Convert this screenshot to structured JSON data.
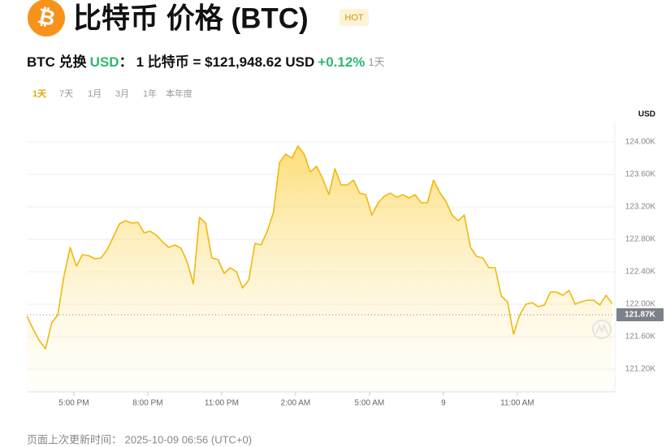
{
  "logo": "₿",
  "title": "比特币 价格 (BTC)",
  "badge": "HOT",
  "converter": {
    "base": "BTC 兑换",
    "quote": "USD",
    "colon": "：",
    "rate": "1 比特币 = $121,948.62 USD",
    "change": "+0.12%",
    "period": "1天"
  },
  "tabs": [
    "1天",
    "7天",
    "1月",
    "3月",
    "1年",
    "本年度"
  ],
  "active_tab": 0,
  "footer": "页面上次更新时间： 2025-10-09 06:56 (UTC+0)",
  "chart_data": {
    "type": "area",
    "y_unit": "USD",
    "xlim": [
      15.09,
      38.96
    ],
    "ylim": [
      120920,
      124250
    ],
    "xticks": [
      {
        "value": 17,
        "label": "5:00 PM"
      },
      {
        "value": 20,
        "label": "8:00 PM"
      },
      {
        "value": 23,
        "label": "11:00 PM"
      },
      {
        "value": 26,
        "label": "2:00 AM"
      },
      {
        "value": 29,
        "label": "5:00 AM"
      },
      {
        "value": 32,
        "label": "9"
      },
      {
        "value": 35,
        "label": "11:00 AM"
      }
    ],
    "yticks": [
      {
        "value": 121200,
        "label": "121.20K"
      },
      {
        "value": 121600,
        "label": "121.60K"
      },
      {
        "value": 122000,
        "label": "122.00K"
      },
      {
        "value": 122400,
        "label": "122.40K"
      },
      {
        "value": 122800,
        "label": "122.80K"
      },
      {
        "value": 123200,
        "label": "123.20K"
      },
      {
        "value": 123600,
        "label": "123.60K"
      },
      {
        "value": 124000,
        "label": "124.00K"
      }
    ],
    "grid": true,
    "current": {
      "value": 121870,
      "label": "121.87K"
    },
    "x": [
      15.1,
      15.35,
      15.6,
      15.85,
      16.1,
      16.35,
      16.6,
      16.85,
      17.1,
      17.35,
      17.6,
      17.85,
      18.1,
      18.35,
      18.6,
      18.85,
      19.1,
      19.35,
      19.6,
      19.85,
      20.1,
      20.35,
      20.6,
      20.85,
      21.1,
      21.35,
      21.6,
      21.85,
      22.1,
      22.35,
      22.6,
      22.85,
      23.1,
      23.35,
      23.6,
      23.85,
      24.1,
      24.35,
      24.6,
      24.85,
      25.1,
      25.35,
      25.6,
      25.85,
      26.1,
      26.35,
      26.6,
      26.85,
      27.1,
      27.35,
      27.6,
      27.85,
      28.1,
      28.35,
      28.6,
      28.85,
      29.1,
      29.35,
      29.6,
      29.85,
      30.1,
      30.35,
      30.6,
      30.85,
      31.1,
      31.35,
      31.6,
      31.85,
      32.1,
      32.35,
      32.6,
      32.85,
      33.1,
      33.35,
      33.6,
      33.85,
      34.1,
      34.35,
      34.6,
      34.85,
      35.1,
      35.35,
      35.6,
      35.85,
      36.1,
      36.35,
      36.6,
      36.85,
      37.1,
      37.35,
      37.6,
      37.85,
      38.1,
      38.35,
      38.6,
      38.85
    ],
    "series": [
      {
        "color": "#f0b90b",
        "values": [
          121850,
          121690,
          121550,
          121450,
          121770,
          121870,
          122350,
          122700,
          122470,
          122610,
          122600,
          122560,
          122570,
          122670,
          122830,
          122990,
          123030,
          123000,
          123010,
          122880,
          122900,
          122850,
          122770,
          122700,
          122730,
          122690,
          122520,
          122250,
          123070,
          123000,
          122570,
          122550,
          122380,
          122450,
          122400,
          122200,
          122300,
          122750,
          122730,
          122900,
          123130,
          123750,
          123850,
          123800,
          123950,
          123850,
          123630,
          123700,
          123550,
          123350,
          123670,
          123470,
          123470,
          123530,
          123370,
          123350,
          123100,
          123250,
          123330,
          123370,
          123320,
          123350,
          123310,
          123350,
          123250,
          123250,
          123530,
          123380,
          123270,
          123100,
          123030,
          123100,
          122700,
          122590,
          122570,
          122450,
          122450,
          122100,
          122030,
          121630,
          121870,
          122000,
          122020,
          121970,
          121990,
          122150,
          122150,
          122110,
          122170,
          122000,
          122030,
          122050,
          122050,
          121990,
          122110,
          122010
        ]
      }
    ]
  }
}
